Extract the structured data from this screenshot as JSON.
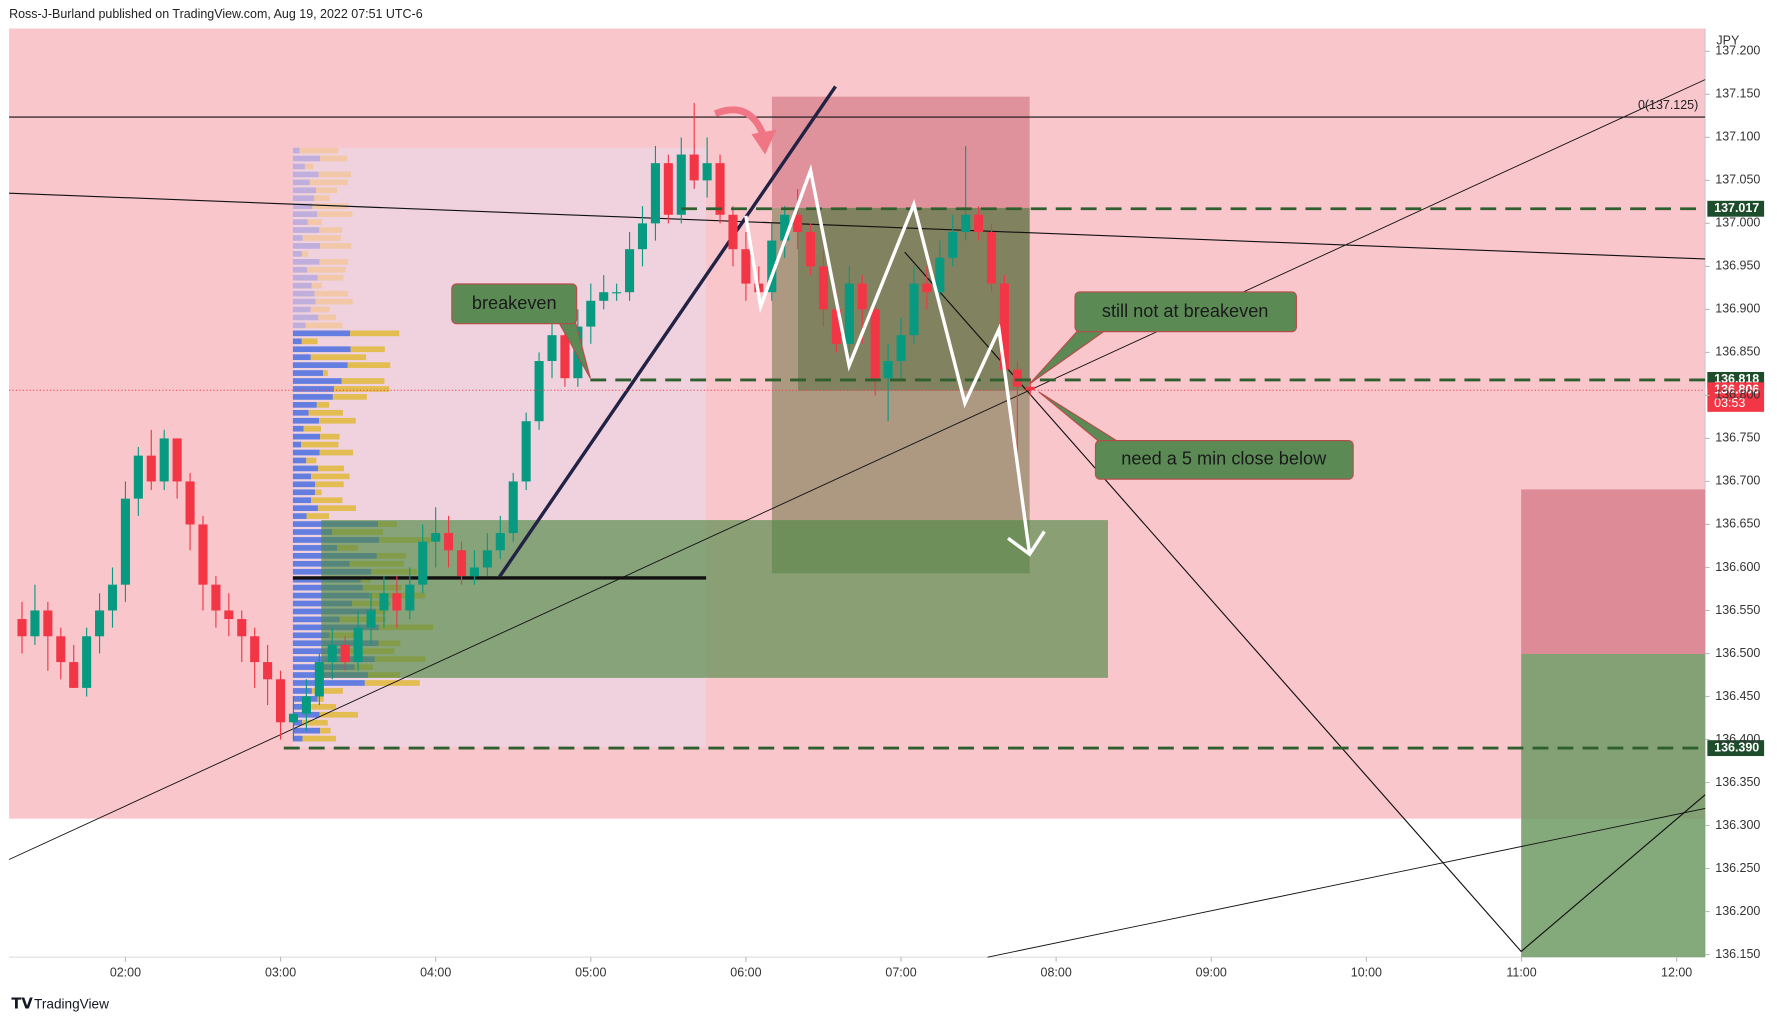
{
  "chart_data": {
    "type": "candlestick",
    "header": "Ross-J-Burland published on TradingView.com, Aug 19, 2022 07:51 UTC-6",
    "currency": "JPY",
    "brand": "TradingView",
    "up_color": "#089981",
    "down_color": "#f23645",
    "x": [
      "01:20",
      "01:25",
      "01:30",
      "01:35",
      "01:40",
      "01:45",
      "01:50",
      "01:55",
      "02:00",
      "02:05",
      "02:10",
      "02:15",
      "02:20",
      "02:25",
      "02:30",
      "02:35",
      "02:40",
      "02:45",
      "02:50",
      "02:55",
      "03:00",
      "03:05",
      "03:10",
      "03:15",
      "03:20",
      "03:25",
      "03:30",
      "03:35",
      "03:40",
      "03:45",
      "03:50",
      "03:55",
      "04:00",
      "04:05",
      "04:10",
      "04:15",
      "04:20",
      "04:25",
      "04:30",
      "04:35",
      "04:40",
      "04:45",
      "04:50",
      "04:55",
      "05:00",
      "05:05",
      "05:10",
      "05:15",
      "05:20",
      "05:25",
      "05:30",
      "05:35",
      "05:40",
      "05:45",
      "05:50",
      "05:55",
      "06:00",
      "06:05",
      "06:10",
      "06:15",
      "06:20",
      "06:25",
      "06:30",
      "06:35",
      "06:40",
      "06:45",
      "06:50",
      "06:55",
      "07:00",
      "07:05",
      "07:10",
      "07:15",
      "07:20",
      "07:25",
      "07:30",
      "07:35",
      "07:40",
      "07:45",
      "07:50"
    ],
    "open": [
      136.54,
      136.52,
      136.55,
      136.52,
      136.49,
      136.46,
      136.52,
      136.55,
      136.58,
      136.68,
      136.73,
      136.7,
      136.75,
      136.7,
      136.65,
      136.58,
      136.55,
      136.54,
      136.52,
      136.49,
      136.47,
      136.42,
      136.43,
      136.45,
      136.49,
      136.51,
      136.49,
      136.53,
      136.55,
      136.57,
      136.55,
      136.58,
      136.63,
      136.64,
      136.62,
      136.59,
      136.6,
      136.62,
      136.64,
      136.7,
      136.77,
      136.84,
      136.87,
      136.82,
      136.88,
      136.91,
      136.92,
      136.92,
      136.97,
      137.0,
      137.07,
      137.01,
      137.08,
      137.05,
      137.07,
      137.01,
      136.97,
      136.93,
      136.92,
      136.98,
      137.01,
      136.99,
      136.95,
      136.9,
      136.86,
      136.93,
      136.9,
      136.82,
      136.84,
      136.87,
      136.93,
      136.92,
      136.96,
      136.99,
      137.01,
      136.99,
      136.93,
      136.83,
      136.81
    ],
    "high": [
      136.56,
      136.58,
      136.56,
      136.53,
      136.51,
      136.53,
      136.57,
      136.6,
      136.7,
      136.74,
      136.76,
      136.76,
      136.75,
      136.71,
      136.66,
      136.59,
      136.57,
      136.55,
      136.53,
      136.51,
      136.48,
      136.45,
      136.47,
      136.5,
      136.53,
      136.52,
      136.55,
      136.57,
      136.59,
      136.59,
      136.6,
      136.65,
      136.67,
      136.66,
      136.63,
      136.62,
      136.64,
      136.66,
      136.71,
      136.78,
      136.85,
      136.89,
      136.88,
      136.9,
      136.93,
      136.94,
      136.93,
      136.99,
      137.02,
      137.09,
      137.08,
      137.1,
      137.14,
      137.1,
      137.08,
      137.02,
      136.99,
      136.95,
      137.0,
      137.02,
      137.04,
      137.0,
      136.97,
      136.92,
      136.95,
      136.94,
      136.91,
      136.86,
      136.89,
      136.95,
      136.95,
      136.98,
      137.01,
      137.09,
      137.02,
      137.0,
      136.94,
      136.84,
      136.82
    ],
    "low": [
      136.5,
      136.51,
      136.48,
      136.47,
      136.46,
      136.45,
      136.5,
      136.53,
      136.56,
      136.66,
      136.69,
      136.69,
      136.68,
      136.62,
      136.55,
      136.53,
      136.52,
      136.49,
      136.46,
      136.44,
      136.4,
      136.4,
      136.41,
      136.44,
      136.47,
      136.48,
      136.48,
      136.51,
      136.53,
      136.53,
      136.54,
      136.57,
      136.6,
      136.6,
      136.58,
      136.58,
      136.59,
      136.61,
      136.63,
      136.69,
      136.76,
      136.82,
      136.81,
      136.81,
      136.86,
      136.9,
      136.91,
      136.91,
      136.95,
      136.98,
      137.0,
      137.0,
      137.04,
      137.03,
      137.0,
      136.95,
      136.91,
      136.91,
      136.91,
      136.96,
      136.97,
      136.94,
      136.88,
      136.85,
      136.85,
      136.86,
      136.8,
      136.77,
      136.82,
      136.86,
      136.9,
      136.91,
      136.95,
      136.98,
      136.98,
      136.92,
      136.82,
      136.72,
      136.8
    ],
    "close": [
      136.52,
      136.55,
      136.52,
      136.49,
      136.46,
      136.52,
      136.55,
      136.58,
      136.68,
      136.73,
      136.7,
      136.75,
      136.7,
      136.65,
      136.58,
      136.55,
      136.54,
      136.52,
      136.49,
      136.47,
      136.42,
      136.43,
      136.45,
      136.49,
      136.51,
      136.49,
      136.53,
      136.55,
      136.57,
      136.55,
      136.58,
      136.63,
      136.64,
      136.62,
      136.59,
      136.6,
      136.62,
      136.64,
      136.7,
      136.77,
      136.84,
      136.87,
      136.82,
      136.88,
      136.91,
      136.92,
      136.92,
      136.97,
      137.0,
      137.07,
      137.01,
      137.08,
      137.05,
      137.07,
      137.01,
      136.97,
      136.93,
      136.92,
      136.98,
      137.01,
      136.99,
      136.95,
      136.9,
      136.86,
      136.93,
      136.9,
      136.82,
      136.84,
      136.87,
      136.93,
      136.92,
      136.96,
      136.99,
      137.01,
      136.99,
      136.93,
      136.83,
      136.81,
      136.806
    ],
    "xlim": [
      "01:15",
      "12:11"
    ],
    "xticks": [
      "02:00",
      "03:00",
      "04:00",
      "05:00",
      "06:00",
      "07:00",
      "08:00",
      "09:00",
      "10:00",
      "11:00",
      "12:00"
    ],
    "ylim": [
      136.147,
      137.2265
    ],
    "yticks": [
      {
        "value": 136.15,
        "label": "136.150"
      },
      {
        "value": 136.2,
        "label": "136.200"
      },
      {
        "value": 136.25,
        "label": "136.250"
      },
      {
        "value": 136.3,
        "label": "136.300"
      },
      {
        "value": 136.35,
        "label": "136.350"
      },
      {
        "value": 136.4,
        "label": "136.400"
      },
      {
        "value": 136.45,
        "label": "136.450"
      },
      {
        "value": 136.5,
        "label": "136.500"
      },
      {
        "value": 136.55,
        "label": "136.550"
      },
      {
        "value": 136.6,
        "label": "136.600"
      },
      {
        "value": 136.65,
        "label": "136.650"
      },
      {
        "value": 136.7,
        "label": "136.700"
      },
      {
        "value": 136.75,
        "label": "136.750"
      },
      {
        "value": 136.8,
        "label": "136.800"
      },
      {
        "value": 136.85,
        "label": "136.850"
      },
      {
        "value": 136.9,
        "label": "136.900"
      },
      {
        "value": 136.95,
        "label": "136.950"
      },
      {
        "value": 137.0,
        "label": "137.000"
      },
      {
        "value": 137.05,
        "label": "137.050"
      },
      {
        "value": 137.1,
        "label": "137.100"
      },
      {
        "value": 137.15,
        "label": "137.150"
      },
      {
        "value": 137.2,
        "label": "137.200"
      }
    ],
    "price_lines": [
      137.017,
      136.818,
      {
        "value": 136.39,
        "label": "136.390"
      }
    ],
    "last_price": 136.806,
    "countdown": "03:53",
    "fib_label": "0(137.125)",
    "annotations": [
      "breakeven",
      "still not at breakeven",
      "need a 5 min close below"
    ]
  }
}
